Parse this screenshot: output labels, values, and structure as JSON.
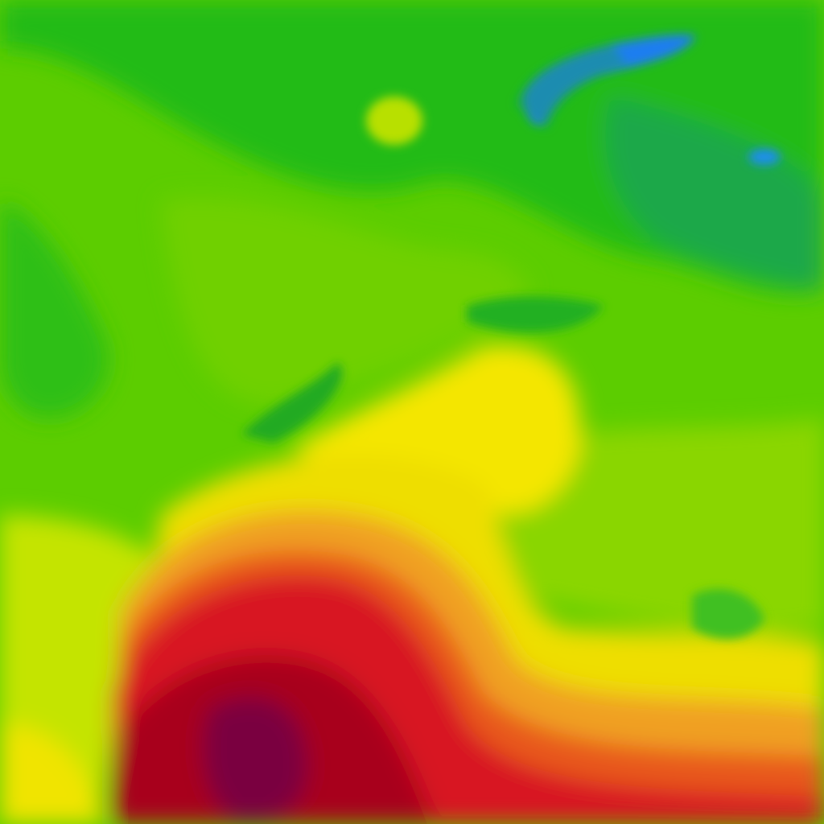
{
  "map": {
    "layer": "temperature",
    "palette": {
      "cold_blue": "#1e90ff",
      "teal": "#18a060",
      "dark_green": "#1fb81a",
      "green": "#4cc80a",
      "light_green": "#7fd400",
      "yellow_green": "#c8e600",
      "yellow": "#f4e800",
      "orange": "#f0a020",
      "red_orange": "#e85020",
      "red": "#d81020",
      "dark_red": "#a80018",
      "maroon": "#7a0040"
    }
  }
}
